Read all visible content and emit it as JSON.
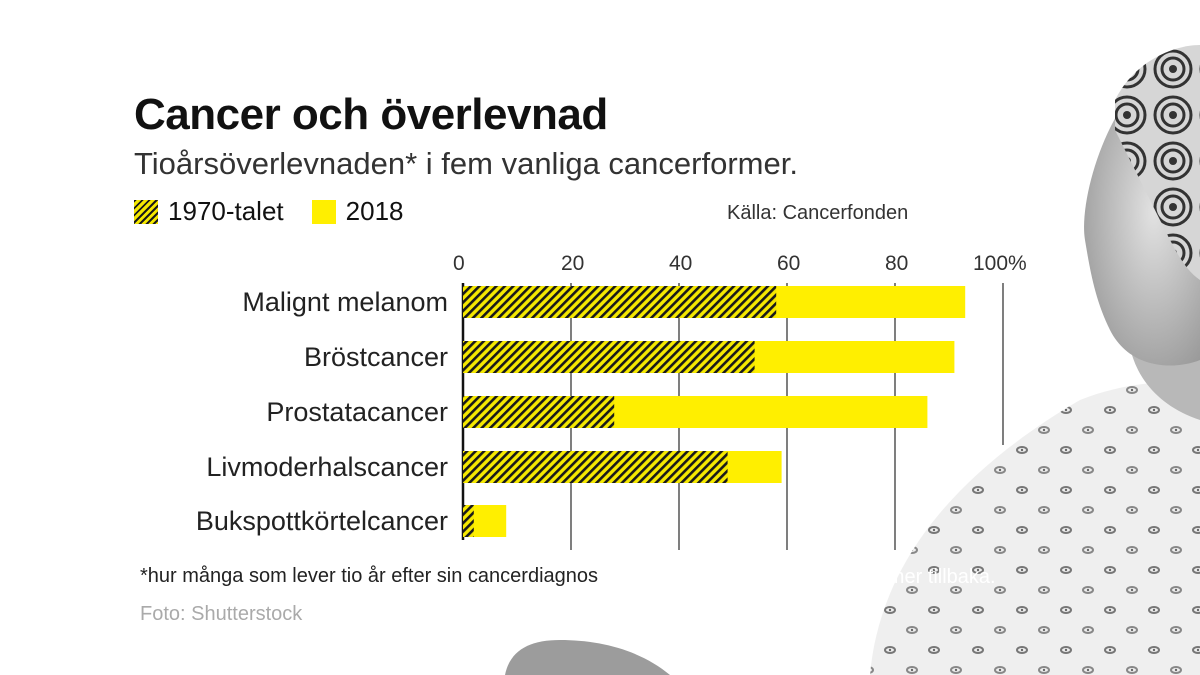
{
  "title": "Cancer och överlevnad",
  "subtitle": "Tioårsöverlevnaden* i fem vanliga cancerformer.",
  "legend": {
    "hatched": "1970-talet",
    "solid": "2018"
  },
  "source": "Källa: Cancerfonden",
  "footnote": "*hur många som lever tio år efter sin cancerdiagnos",
  "photo_credit": "Foto: Shutterstock",
  "background_caption": "ommer tillbaka.",
  "colors": {
    "yellow": "#ffef00",
    "hatch_dark": "#1a1a1a",
    "hatch_light": "#f5e800",
    "grid": "#2a2a2a"
  },
  "chart_data": {
    "type": "bar",
    "orientation": "horizontal",
    "categories": [
      "Malignt melanom",
      "Bröstcancer",
      "Prostatacancer",
      "Livmoderhalscancer",
      "Bukspottkörtelcancer"
    ],
    "series": [
      {
        "name": "1970-talet",
        "values": [
          58,
          54,
          28,
          49,
          2
        ]
      },
      {
        "name": "2018",
        "values": [
          93,
          91,
          86,
          59,
          8
        ]
      }
    ],
    "xticks": [
      "0",
      "20",
      "40",
      "60",
      "80",
      "100%"
    ],
    "xlim": [
      0,
      100
    ],
    "grid": true,
    "axis_position": "top",
    "legend_position": "top-left"
  }
}
